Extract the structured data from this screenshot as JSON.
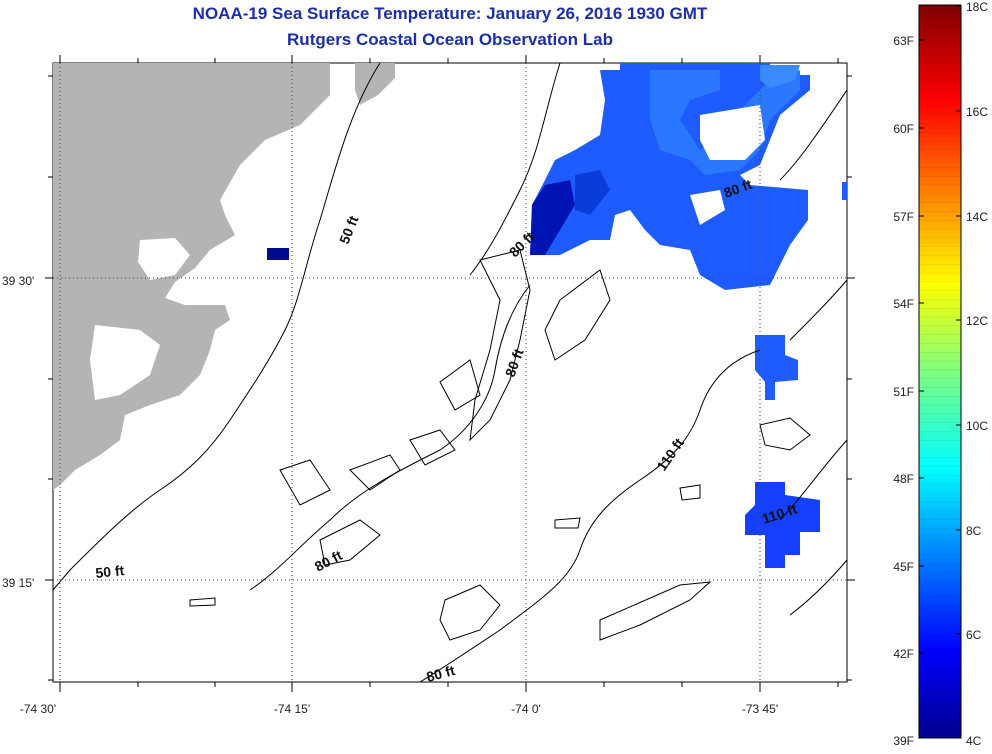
{
  "title": "NOAA-19 Sea Surface Temperature:  January 26, 2016 1930 GMT",
  "subtitle": "Rutgers Coastal Ocean Observation Lab",
  "axes": {
    "x_ticks": [
      "-74 30'",
      "-74 15'",
      "-74 0'",
      "-73 45'"
    ],
    "y_ticks": [
      "39 30'",
      "39 15'"
    ]
  },
  "contour_labels": [
    "50 ft",
    "80 ft",
    "80 ft",
    "80 ft",
    "110 ft",
    "110 ft",
    "80 ft",
    "50 ft",
    "80 ft"
  ],
  "colorbar": {
    "fahrenheit": [
      "63F",
      "60F",
      "57F",
      "54F",
      "51F",
      "48F",
      "45F",
      "42F",
      "39F"
    ],
    "celsius": [
      "18C",
      "16C",
      "14C",
      "12C",
      "10C",
      "8C",
      "6C",
      "4C"
    ]
  },
  "colors": {
    "title": "#1d2fa8",
    "land": "#b4b4b4",
    "sst_cold": "#0000a0",
    "sst_mid": "#1f5cff",
    "sst_warm": "#2aa0ff"
  }
}
